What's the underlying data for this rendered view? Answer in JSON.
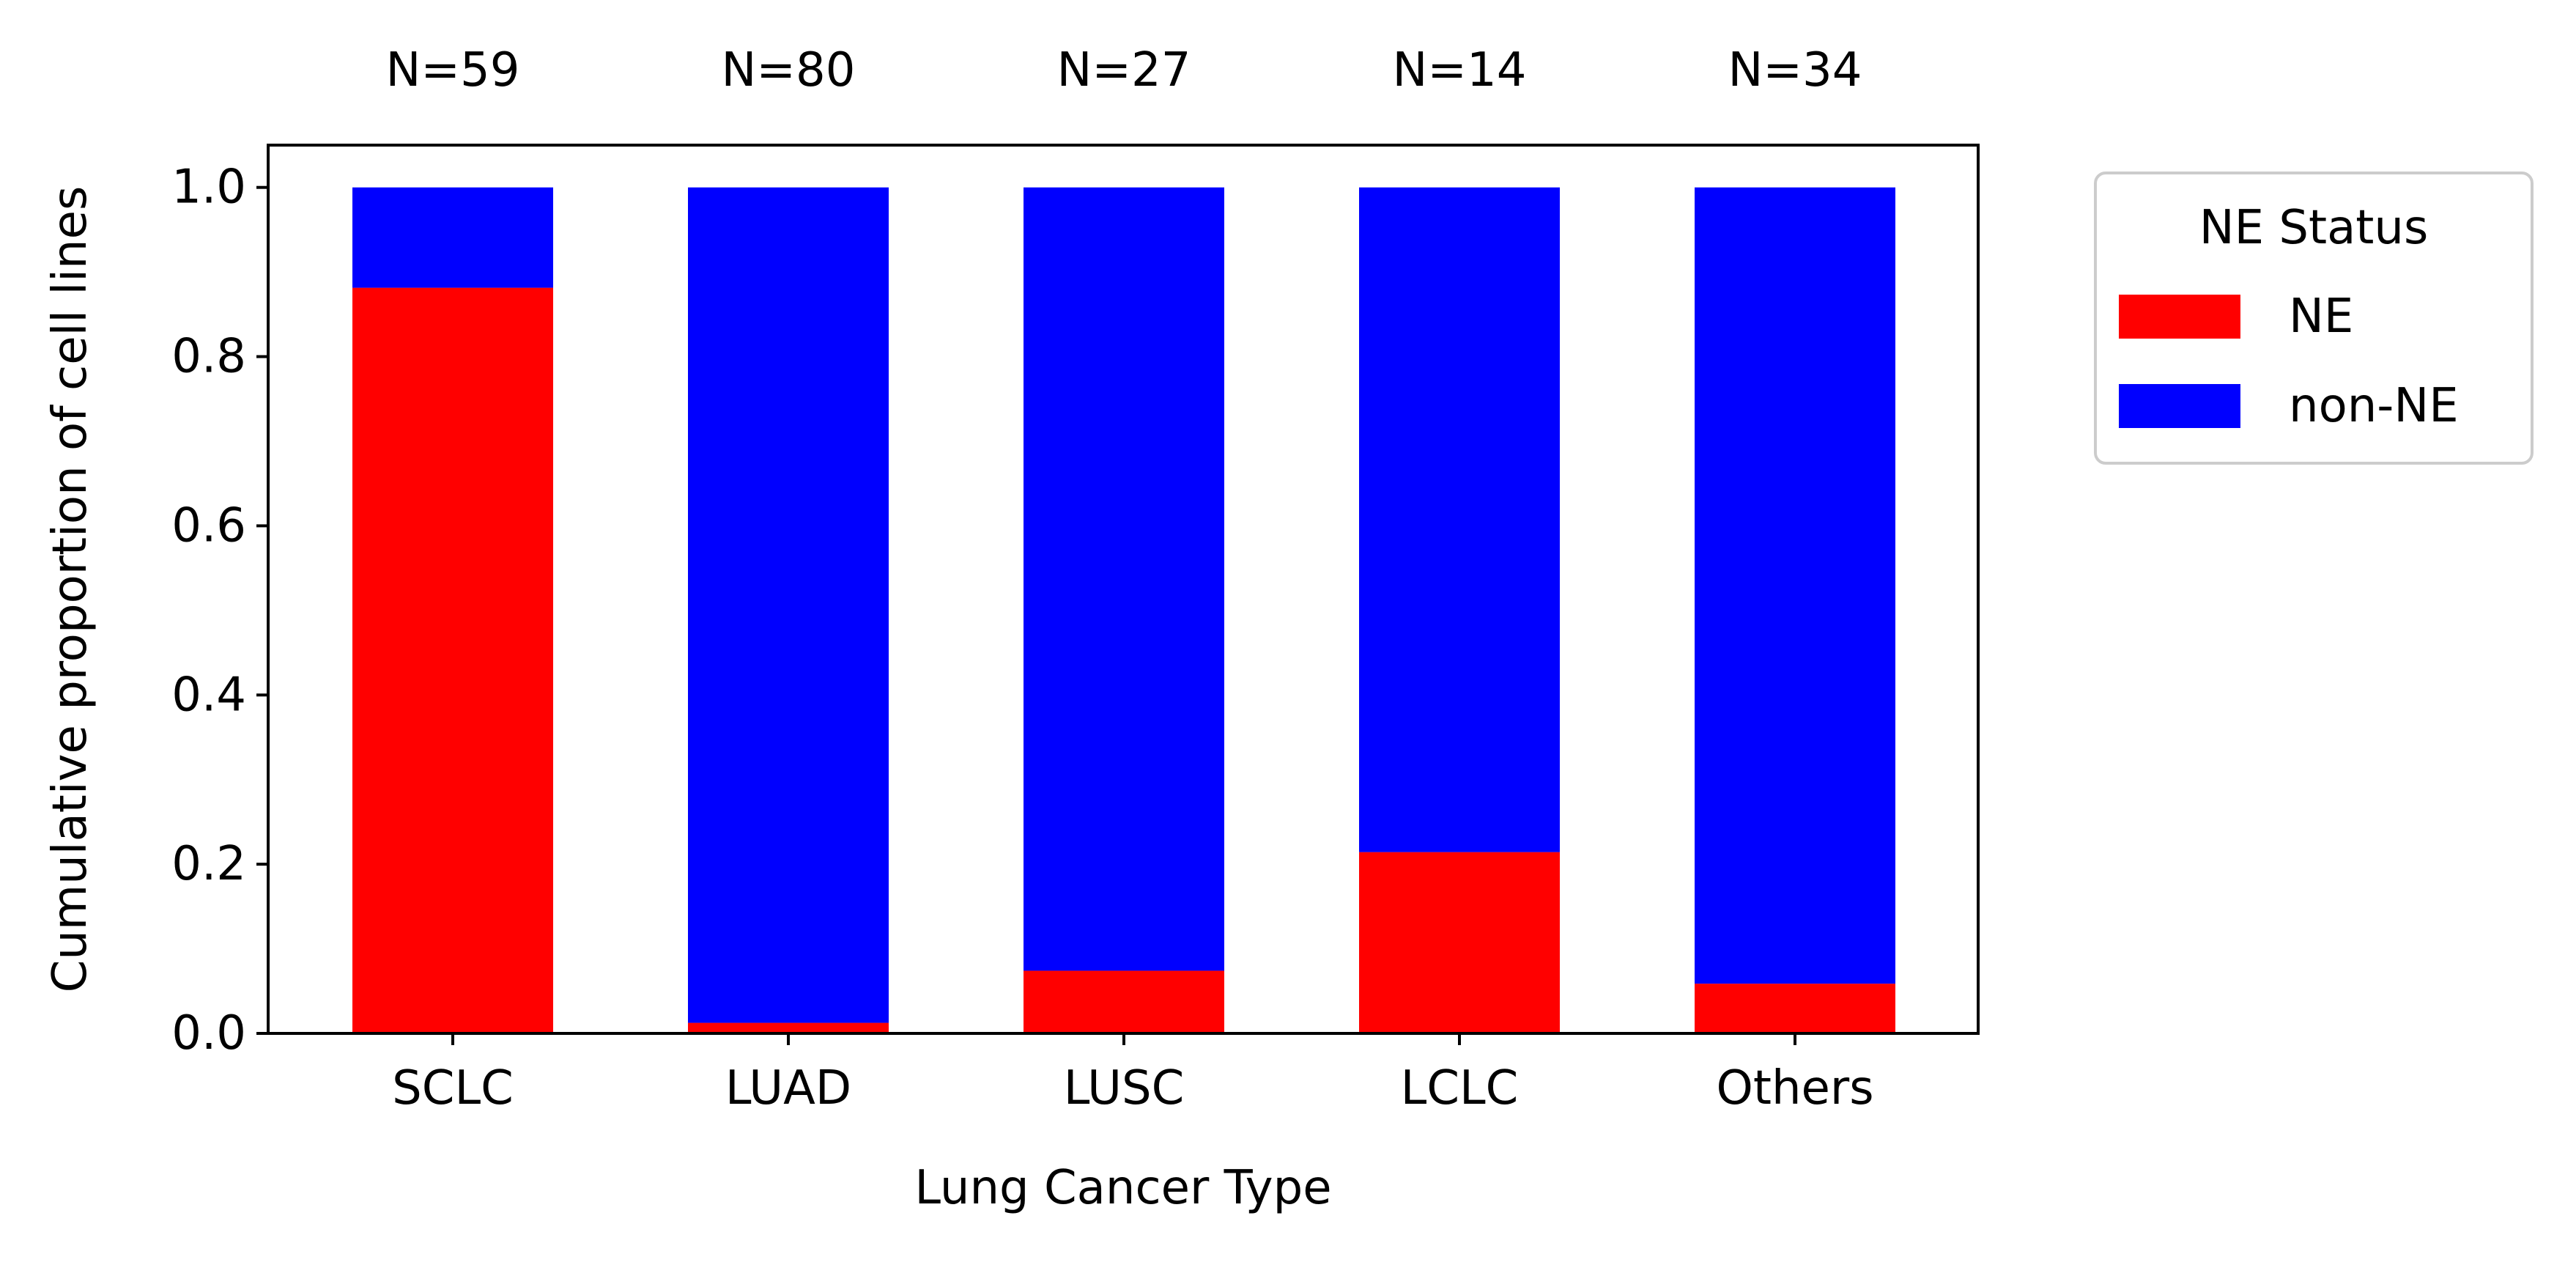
{
  "chart_data": {
    "type": "bar",
    "stacked": true,
    "categories": [
      "SCLC",
      "LUAD",
      "LUSC",
      "LCLC",
      "Others"
    ],
    "series": [
      {
        "name": "NE",
        "color": "#ff0000",
        "values": [
          0.8814,
          0.0125,
          0.0741,
          0.2143,
          0.0588
        ]
      },
      {
        "name": "non-NE",
        "color": "#0000ff",
        "values": [
          0.1186,
          0.9875,
          0.9259,
          0.7857,
          0.9412
        ]
      }
    ],
    "top_labels": [
      "N=59",
      "N=80",
      "N=27",
      "N=14",
      "N=34"
    ],
    "title": "",
    "xlabel": "Lung Cancer Type",
    "ylabel": "Cumulative proportion of cell lines",
    "ylim": [
      0,
      1.05
    ],
    "yticks": [
      0.0,
      0.2,
      0.4,
      0.6,
      0.8,
      1.0
    ],
    "ytick_labels": [
      "0.0",
      "0.2",
      "0.4",
      "0.6",
      "0.8",
      "1.0"
    ],
    "grid": false,
    "legend": {
      "title": "NE Status",
      "placement": "outside right, top",
      "entries": [
        "NE",
        "non-NE"
      ]
    }
  }
}
